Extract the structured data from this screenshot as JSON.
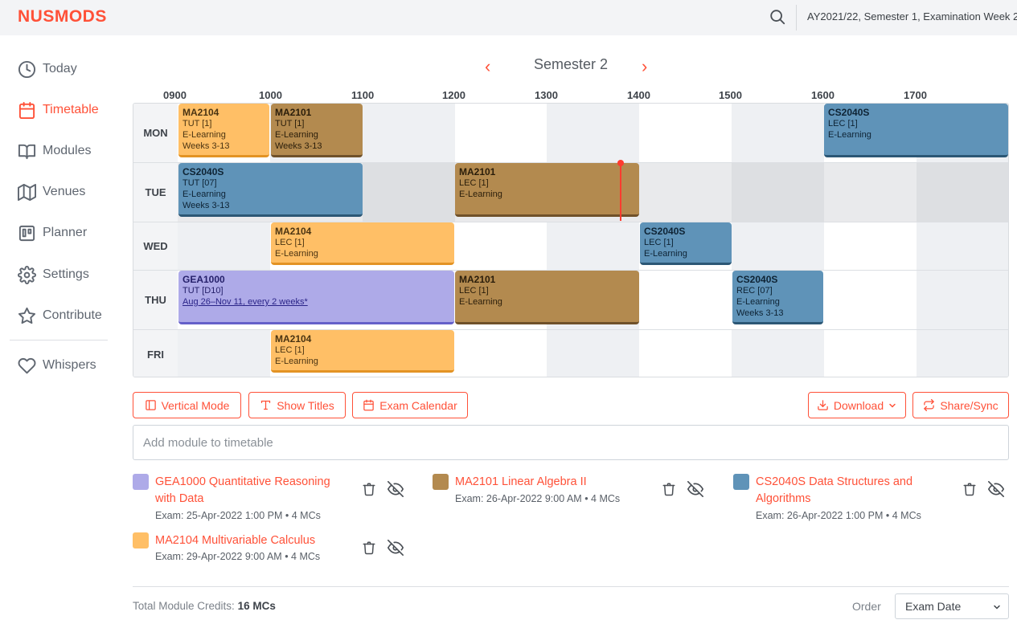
{
  "header": {
    "logo": "NUSMODS",
    "semester_info": "AY2021/22, Semester 1, Examination Week 2"
  },
  "sidebar": {
    "items": [
      {
        "label": "Today",
        "icon": "clock-icon"
      },
      {
        "label": "Timetable",
        "icon": "calendar-icon",
        "active": true
      },
      {
        "label": "Modules",
        "icon": "book-open-icon"
      },
      {
        "label": "Venues",
        "icon": "map-icon"
      },
      {
        "label": "Planner",
        "icon": "trello-icon"
      },
      {
        "label": "Settings",
        "icon": "gear-icon"
      },
      {
        "label": "Contribute",
        "icon": "star-icon"
      },
      {
        "label": "Whispers",
        "icon": "heart-icon"
      }
    ]
  },
  "timetable": {
    "semester_title": "Semester 2",
    "prev_glyph": "‹",
    "next_glyph": "›",
    "hours": [
      "0900",
      "1000",
      "1100",
      "1200",
      "1300",
      "1400",
      "1500",
      "1600",
      "1700"
    ],
    "days": [
      "MON",
      "TUE",
      "WED",
      "THU",
      "FRI"
    ],
    "lessons": {
      "mon_ma2104": {
        "code": "MA2104",
        "type": "TUT [1]",
        "venue": "E-Learning",
        "weeks": "Weeks 3-13"
      },
      "mon_ma2101": {
        "code": "MA2101",
        "type": "TUT [1]",
        "venue": "E-Learning",
        "weeks": "Weeks 3-13"
      },
      "mon_cs2040s": {
        "code": "CS2040S",
        "type": "LEC [1]",
        "venue": "E-Learning"
      },
      "tue_cs2040s": {
        "code": "CS2040S",
        "type": "TUT [07]",
        "venue": "E-Learning",
        "weeks": "Weeks 3-13"
      },
      "tue_ma2101": {
        "code": "MA2101",
        "type": "LEC [1]",
        "venue": "E-Learning"
      },
      "wed_ma2104": {
        "code": "MA2104",
        "type": "LEC [1]",
        "venue": "E-Learning"
      },
      "wed_cs2040s": {
        "code": "CS2040S",
        "type": "LEC [1]",
        "venue": "E-Learning"
      },
      "thu_gea1000": {
        "code": "GEA1000",
        "type": "TUT [D10]",
        "weeks": "Aug 26–Nov 11, every 2 weeks*"
      },
      "thu_ma2101": {
        "code": "MA2101",
        "type": "LEC [1]",
        "venue": "E-Learning"
      },
      "thu_cs2040s": {
        "code": "CS2040S",
        "type": "REC [07]",
        "venue": "E-Learning",
        "weeks": "Weeks 3-13"
      },
      "fri_ma2104": {
        "code": "MA2104",
        "type": "LEC [1]",
        "venue": "E-Learning"
      }
    }
  },
  "toolbar": {
    "vertical_mode": "Vertical Mode",
    "show_titles": "Show Titles",
    "exam_calendar": "Exam Calendar",
    "download": "Download",
    "share_sync": "Share/Sync"
  },
  "add_module": {
    "placeholder": "Add module to timetable"
  },
  "modules": {
    "gea1000": {
      "title": "GEA1000 Quantitative Reasoning with Data",
      "exam": "Exam: 25-Apr-2022 1:00 PM • 4 MCs",
      "color": "#aeaae8"
    },
    "ma2101": {
      "title": "MA2101 Linear Algebra II",
      "exam": "Exam: 26-Apr-2022 9:00 AM • 4 MCs",
      "color": "#b38a4f"
    },
    "cs2040s": {
      "title": "CS2040S Data Structures and Algorithms",
      "exam": "Exam: 26-Apr-2022 1:00 PM • 4 MCs",
      "color": "#5f93b8"
    },
    "ma2104": {
      "title": "MA2104 Multivariable Calculus",
      "exam": "Exam: 29-Apr-2022 9:00 AM • 4 MCs",
      "color": "#ffbf66"
    }
  },
  "footer": {
    "total_label": "Total Module Credits:",
    "total_value": "16 MCs",
    "order_label": "Order",
    "order_value": "Exam Date"
  },
  "colors": {
    "accent": "#ff5138",
    "orange": "#ffbf66",
    "brown": "#b38a4f",
    "blue": "#5f93b8",
    "purple": "#aeaae8"
  }
}
